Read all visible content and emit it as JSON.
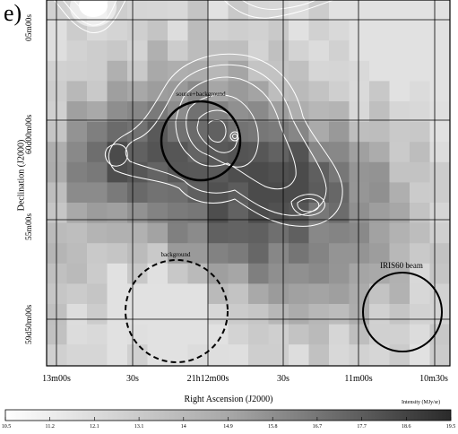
{
  "figure": {
    "panel_label": "e)",
    "x_axis_title": "Right Ascension (J2000)",
    "y_axis_title": "Declination (J2000)",
    "x_ticks": [
      "13m00s",
      "30s",
      "21h12m00s",
      "30s",
      "11m00s",
      "10m30s"
    ],
    "y_ticks": [
      "05m00s",
      "60d00m00s",
      "55m00s",
      "59d50m00s"
    ],
    "colorbar": {
      "title": "Intensity (MJy/sr)",
      "ticks": [
        "10.5",
        "11.2",
        "12.1",
        "13.1",
        "14",
        "14.9",
        "15.8",
        "16.7",
        "17.7",
        "18.6",
        "19.5"
      ]
    },
    "annotations": {
      "source_label": "source+background",
      "background_label": "background",
      "beam_label": "IRIS60 beam"
    },
    "colors": {
      "grid": "#000000",
      "contours": "#ffffff",
      "colorbar_low": "#ffffff",
      "colorbar_high": "#222222"
    }
  }
}
